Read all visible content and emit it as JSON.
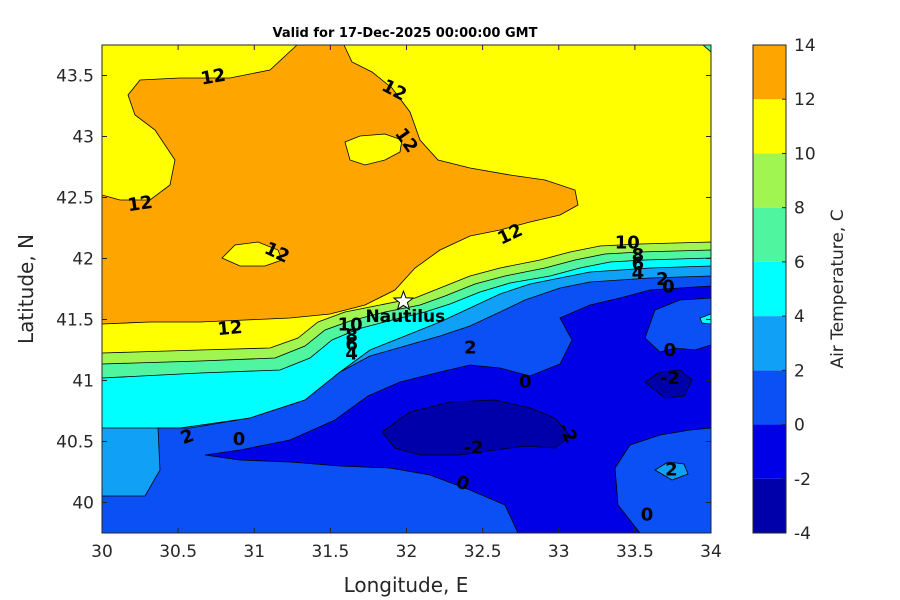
{
  "chart_data": {
    "type": "contour",
    "title": "Valid for 17-Dec-2025 00:00:00 GMT",
    "xlabel": "Longitude, E",
    "ylabel": "Latitude, N",
    "xlim": [
      30,
      34
    ],
    "ylim": [
      39.75,
      43.75
    ],
    "xticks": [
      30,
      30.5,
      31,
      31.5,
      32,
      32.5,
      33,
      33.5,
      34
    ],
    "xtick_labels": [
      "30",
      "30.5",
      "31",
      "31.5",
      "32",
      "32.5",
      "33",
      "33.5",
      "34"
    ],
    "yticks": [
      40,
      40.5,
      41,
      41.5,
      42,
      42.5,
      43,
      43.5
    ],
    "ytick_labels": [
      "40",
      "40.5",
      "41",
      "41.5",
      "42",
      "42.5",
      "43",
      "43.5"
    ],
    "colorbar": {
      "label": "Air Temperature, C",
      "levels": [
        -4,
        -2,
        0,
        2,
        4,
        6,
        8,
        10,
        12,
        14
      ],
      "tick_labels": [
        "-4",
        "-2",
        "0",
        "2",
        "4",
        "6",
        "8",
        "10",
        "12",
        "14"
      ],
      "colors": [
        "#0000aa",
        "#0000e6",
        "#0a50f5",
        "#10a0f5",
        "#00ffff",
        "#50f5a0",
        "#a0f550",
        "#ffff00",
        "#ffa500",
        "#ff5500"
      ]
    },
    "marker": {
      "name": "Nautilus",
      "lon": 31.98,
      "lat": 41.65,
      "symbol": "star"
    },
    "contour_labels": [
      {
        "text": "12",
        "lon": 30.73,
        "lat": 43.49,
        "angle": -10
      },
      {
        "text": "12",
        "lon": 31.92,
        "lat": 43.38,
        "angle": 28
      },
      {
        "text": "12",
        "lon": 32.0,
        "lat": 42.97,
        "angle": 55
      },
      {
        "text": "12",
        "lon": 30.25,
        "lat": 42.45,
        "angle": -8
      },
      {
        "text": "12",
        "lon": 31.15,
        "lat": 42.05,
        "angle": 25
      },
      {
        "text": "12",
        "lon": 32.68,
        "lat": 42.2,
        "angle": -25
      },
      {
        "text": "12",
        "lon": 30.84,
        "lat": 41.43,
        "angle": -5
      },
      {
        "text": "10",
        "lon": 33.45,
        "lat": 42.13,
        "angle": 0
      },
      {
        "text": "8",
        "lon": 33.52,
        "lat": 42.03,
        "angle": 0
      },
      {
        "text": "6",
        "lon": 33.52,
        "lat": 41.96,
        "angle": 0
      },
      {
        "text": "4",
        "lon": 33.52,
        "lat": 41.88,
        "angle": 0
      },
      {
        "text": "2",
        "lon": 33.68,
        "lat": 41.83,
        "angle": 0
      },
      {
        "text": "0",
        "lon": 33.72,
        "lat": 41.77,
        "angle": 0
      },
      {
        "text": "10",
        "lon": 31.63,
        "lat": 41.46,
        "angle": 0
      },
      {
        "text": "8",
        "lon": 31.64,
        "lat": 41.37,
        "angle": 0
      },
      {
        "text": "6",
        "lon": 31.64,
        "lat": 41.3,
        "angle": 0
      },
      {
        "text": "4",
        "lon": 31.64,
        "lat": 41.22,
        "angle": 0
      },
      {
        "text": "2",
        "lon": 32.42,
        "lat": 41.27,
        "angle": 0
      },
      {
        "text": "0",
        "lon": 32.78,
        "lat": 40.99,
        "angle": 0
      },
      {
        "text": "0",
        "lon": 33.73,
        "lat": 41.25,
        "angle": 0
      },
      {
        "text": "-2",
        "lon": 33.73,
        "lat": 41.02,
        "angle": 0
      },
      {
        "text": "2",
        "lon": 30.56,
        "lat": 40.54,
        "angle": -20
      },
      {
        "text": "0",
        "lon": 30.9,
        "lat": 40.52,
        "angle": 0
      },
      {
        "text": "-2",
        "lon": 32.44,
        "lat": 40.45,
        "angle": 0
      },
      {
        "text": "-2",
        "lon": 33.06,
        "lat": 40.57,
        "angle": 60
      },
      {
        "text": "0",
        "lon": 32.37,
        "lat": 40.16,
        "angle": 20
      },
      {
        "text": "2",
        "lon": 33.74,
        "lat": 40.27,
        "angle": 0
      },
      {
        "text": "0",
        "lon": 33.58,
        "lat": 39.9,
        "angle": 0
      }
    ]
  }
}
